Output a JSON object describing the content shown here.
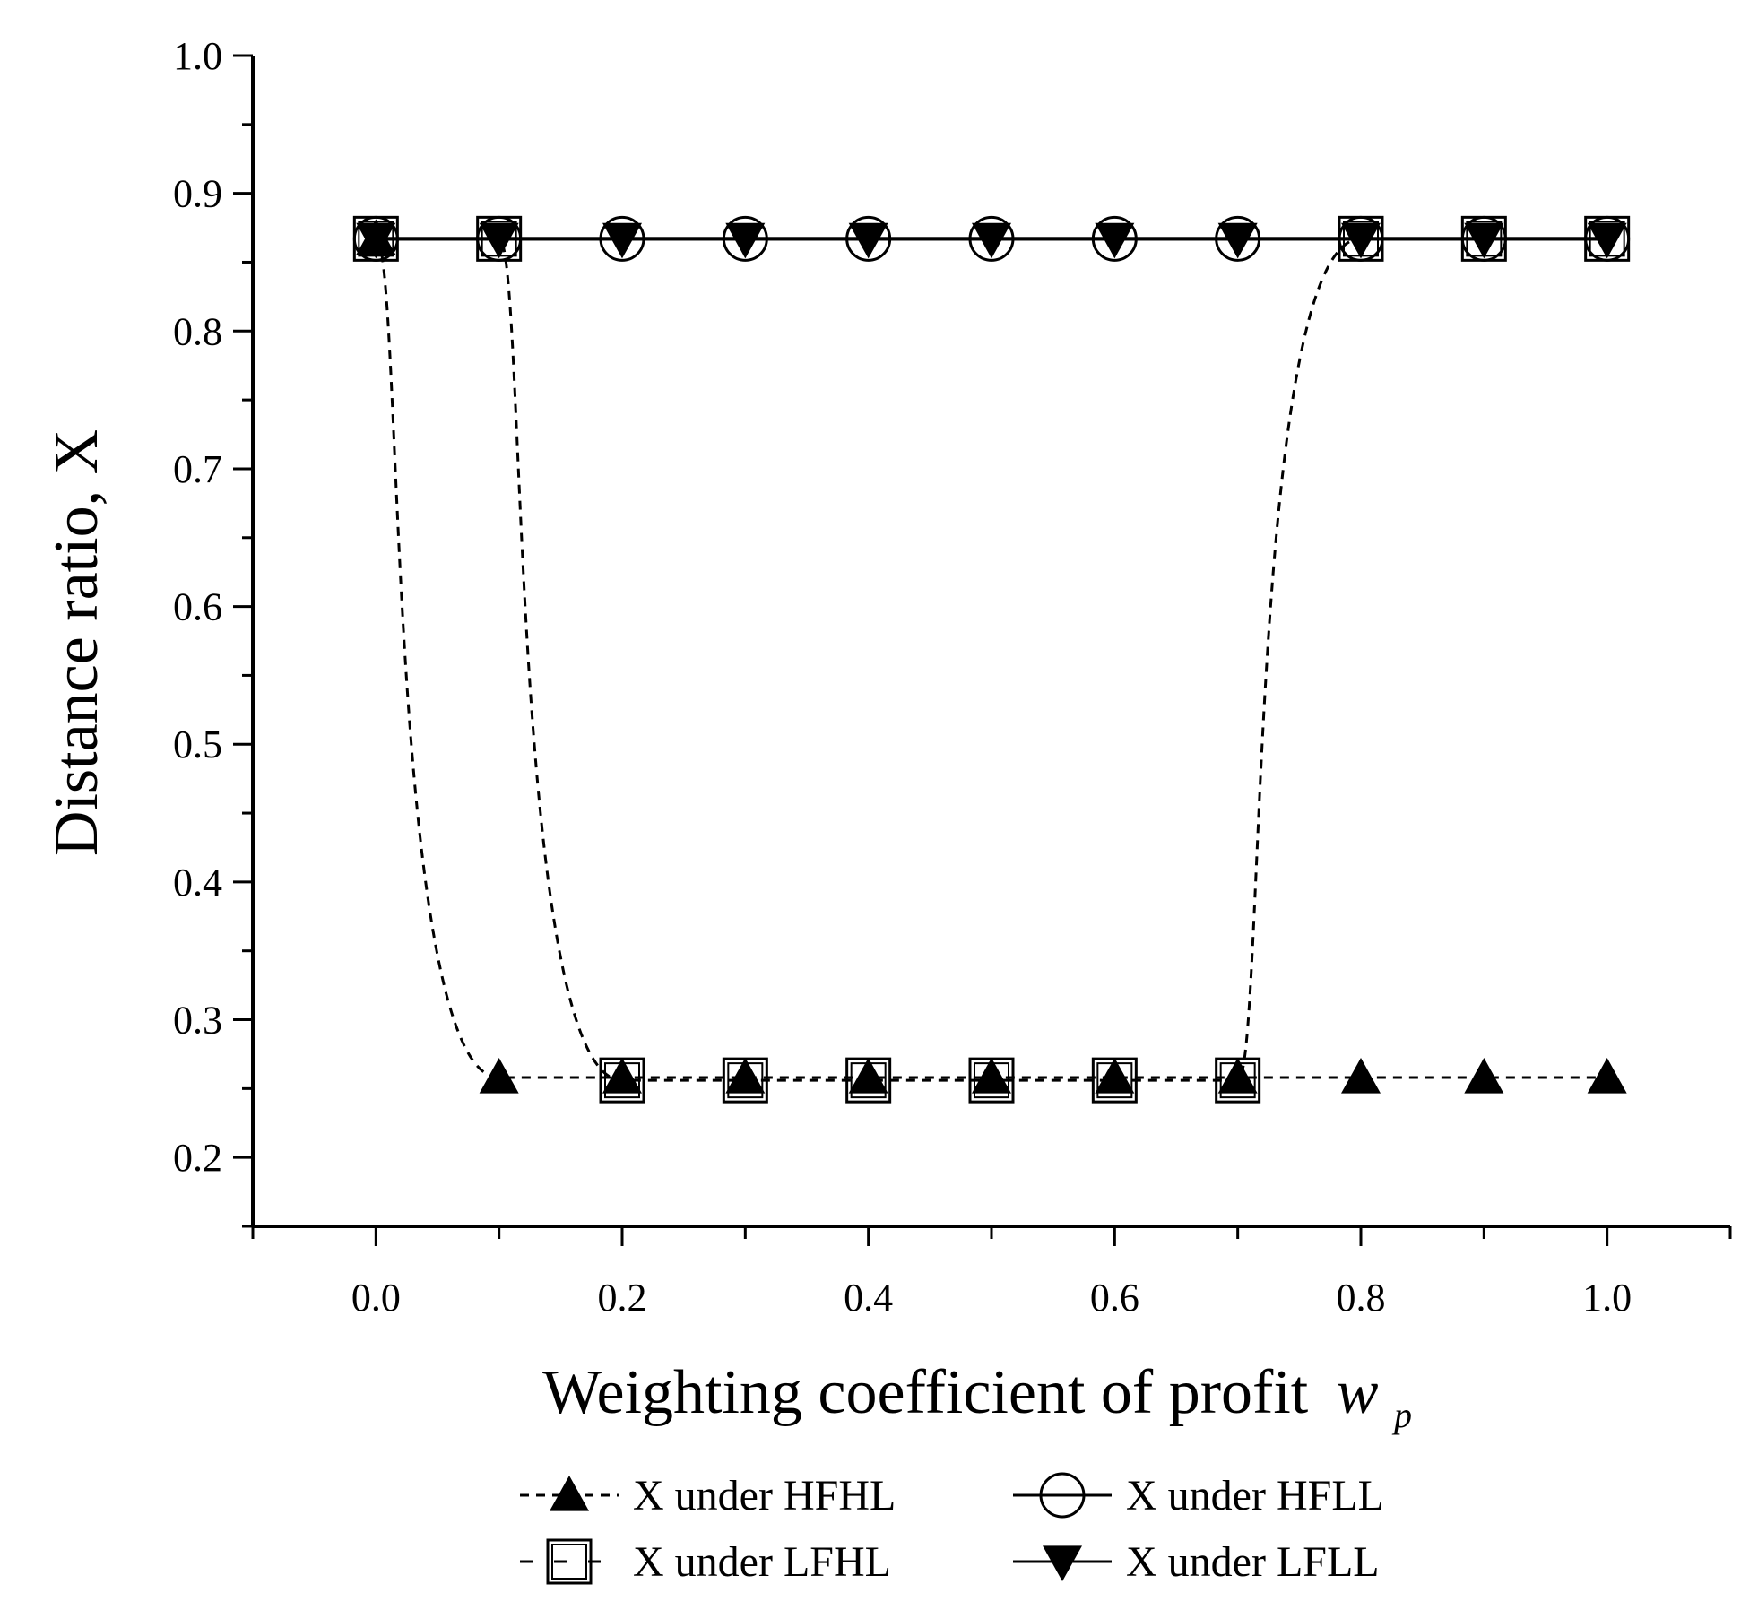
{
  "chart_data": {
    "type": "line",
    "xlabel": "Weighting coefficient of profit",
    "xlabel_symbol": "w",
    "xlabel_subscript": "p",
    "ylabel": "Distance ratio, X",
    "xlim": [
      -0.1,
      1.1
    ],
    "ylim": [
      0.15,
      1.0
    ],
    "x_ticks": [
      "0.0",
      "0.2",
      "0.4",
      "0.6",
      "0.8",
      "1.0"
    ],
    "y_ticks": [
      "0.2",
      "0.3",
      "0.4",
      "0.5",
      "0.6",
      "0.7",
      "0.8",
      "0.9",
      "1.0"
    ],
    "grid": false,
    "legend_position": "bottom",
    "x": [
      0.0,
      0.1,
      0.2,
      0.3,
      0.4,
      0.5,
      0.6,
      0.7,
      0.8,
      0.9,
      1.0
    ],
    "series": [
      {
        "name": "X under HFHL",
        "marker": "triangle-up-filled",
        "line": "dotted",
        "values": [
          0.867,
          0.258,
          0.258,
          0.258,
          0.258,
          0.258,
          0.258,
          0.258,
          0.258,
          0.258,
          0.258
        ]
      },
      {
        "name": "X under HFLL",
        "marker": "circle-open",
        "line": "solid",
        "values": [
          0.867,
          0.867,
          0.867,
          0.867,
          0.867,
          0.867,
          0.867,
          0.867,
          0.867,
          0.867,
          0.867
        ]
      },
      {
        "name": "X under LFHL",
        "marker": "square-open",
        "line": "dotted",
        "values": [
          0.867,
          0.867,
          0.256,
          0.256,
          0.256,
          0.256,
          0.256,
          0.256,
          0.867,
          0.867,
          0.867
        ]
      },
      {
        "name": "X under LFLL",
        "marker": "triangle-down-filled",
        "line": "solid",
        "values": [
          0.867,
          0.867,
          0.867,
          0.867,
          0.867,
          0.867,
          0.867,
          0.867,
          0.867,
          0.867,
          0.867
        ]
      }
    ]
  }
}
